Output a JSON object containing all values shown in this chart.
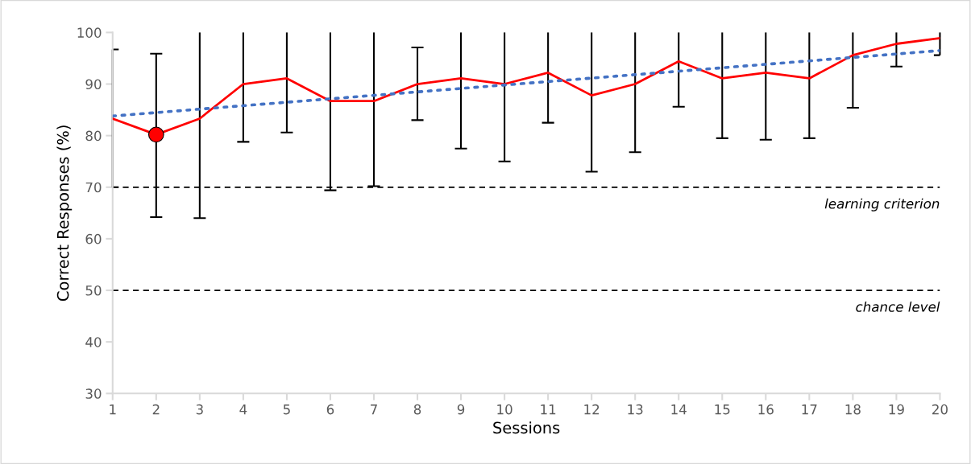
{
  "chart_data": {
    "type": "line",
    "xlabel": "Sessions",
    "ylabel": "Correct Responses (%)",
    "x": [
      1,
      2,
      3,
      4,
      5,
      6,
      7,
      8,
      9,
      10,
      11,
      12,
      13,
      14,
      15,
      16,
      17,
      18,
      19,
      20
    ],
    "series": [
      {
        "color": "#ff0000",
        "line_style": "solid",
        "values": [
          83.3,
          80.2,
          83.3,
          90,
          91.1,
          86.7,
          86.7,
          90,
          91.1,
          90,
          92.2,
          87.8,
          90,
          94.4,
          91.1,
          92.2,
          91.1,
          95.6,
          97.8,
          98.9
        ],
        "errors": [
          [
            70,
            96.7
          ],
          [
            64.2,
            95.9
          ],
          [
            64.0,
            100
          ],
          [
            78.8,
            100
          ],
          [
            80.6,
            100
          ],
          [
            69.4,
            100
          ],
          [
            70.2,
            100
          ],
          [
            83.0,
            97.1
          ],
          [
            77.5,
            100
          ],
          [
            75.0,
            100
          ],
          [
            82.5,
            100
          ],
          [
            73.0,
            100
          ],
          [
            76.8,
            100
          ],
          [
            85.6,
            100
          ],
          [
            79.5,
            100
          ],
          [
            79.2,
            100
          ],
          [
            79.5,
            100
          ],
          [
            85.4,
            100
          ],
          [
            93.4,
            100
          ],
          [
            95.6,
            100
          ]
        ]
      },
      {
        "type": "scatter",
        "color": "#ff0000",
        "marker": "circle",
        "x": [
          2
        ],
        "values": [
          80.2
        ]
      },
      {
        "color": "#4472c4",
        "line_style": "dotted",
        "x": [
          1,
          20
        ],
        "values": [
          83.8,
          96.5
        ]
      }
    ],
    "ref_lines": [
      {
        "axis": "y",
        "value": 70,
        "label": "learning criterion",
        "color": "#000000",
        "line_style": "dashed"
      },
      {
        "axis": "y",
        "value": 50,
        "label": "chance level",
        "color": "#000000",
        "line_style": "dashed"
      }
    ],
    "xlim": [
      1,
      20
    ],
    "xticks": [
      1,
      2,
      3,
      4,
      5,
      6,
      7,
      8,
      9,
      10,
      11,
      12,
      13,
      14,
      15,
      16,
      17,
      18,
      19,
      20
    ],
    "ylim": [
      30,
      100
    ],
    "yticks": [
      30,
      40,
      50,
      60,
      70,
      80,
      90,
      100
    ],
    "grid": false,
    "legend": false
  }
}
